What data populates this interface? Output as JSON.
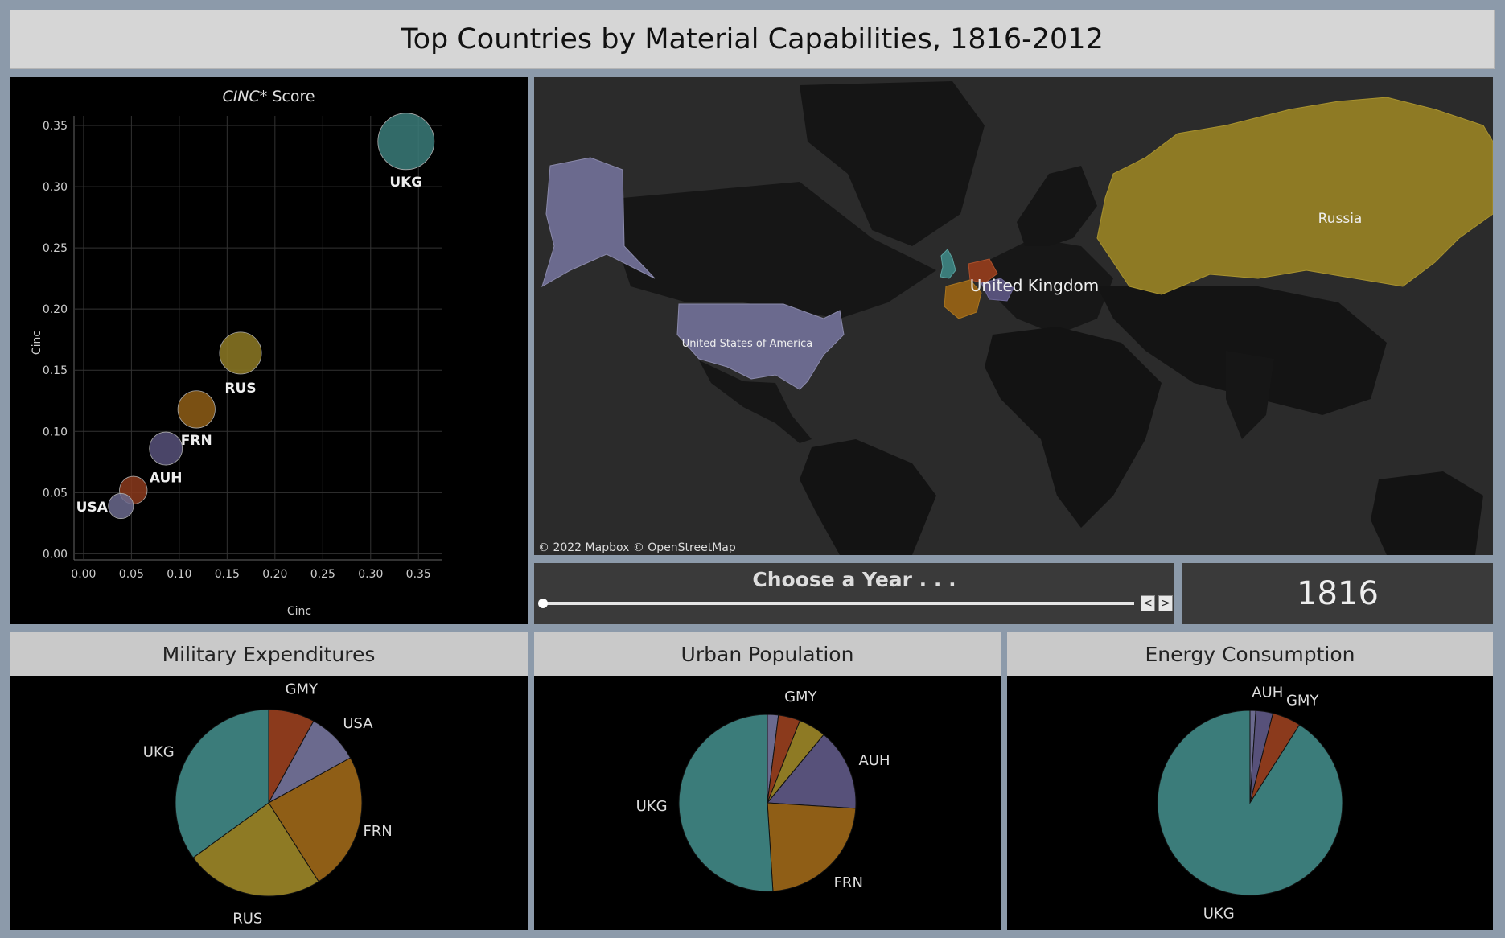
{
  "title": "Top Countries by Material Capabilities, 1816-2012",
  "scatter": {
    "title_italic": "CINC*",
    "title_rest": " Score",
    "xlabel": "Cinc",
    "ylabel": "Cinc",
    "xticks": [
      "0.00",
      "0.05",
      "0.10",
      "0.15",
      "0.20",
      "0.25",
      "0.30",
      "0.35"
    ],
    "yticks": [
      "0.00",
      "0.05",
      "0.10",
      "0.15",
      "0.20",
      "0.25",
      "0.30",
      "0.35"
    ]
  },
  "map": {
    "labels": {
      "russia": "Russia",
      "uk": "United Kingdom",
      "usa": "United States of America"
    },
    "attribution": "© 2022 Mapbox  © OpenStreetMap"
  },
  "year_selector": {
    "label": "Choose a Year . . .",
    "value": 0,
    "prev": "<",
    "next": ">"
  },
  "year_display": "1816",
  "headers": {
    "military": "Military Expenditures",
    "urban": "Urban Population",
    "energy": "Energy Consumption"
  },
  "colors": {
    "UKG": "#3b7c7a",
    "RUS": "#8e7a24",
    "FRN": "#8f5e16",
    "AUH": "#57517a",
    "USA": "#6b6a8e",
    "GMY": "#8b3a1c"
  },
  "chart_data": [
    {
      "type": "scatter",
      "title": "CINC* Score",
      "xlabel": "Cinc",
      "ylabel": "Cinc",
      "xlim": [
        -0.01,
        0.375
      ],
      "ylim": [
        -0.005,
        0.375
      ],
      "points": [
        {
          "label": "UKG",
          "x": 0.337,
          "y": 0.337,
          "size": 1.0
        },
        {
          "label": "RUS",
          "x": 0.164,
          "y": 0.164,
          "size": 0.48
        },
        {
          "label": "FRN",
          "x": 0.118,
          "y": 0.118,
          "size": 0.35
        },
        {
          "label": "AUH",
          "x": 0.086,
          "y": 0.086,
          "size": 0.25
        },
        {
          "label": "GMY",
          "x": 0.052,
          "y": 0.052,
          "size": 0.15
        },
        {
          "label": "USA",
          "x": 0.039,
          "y": 0.039,
          "size": 0.11
        }
      ],
      "visible_point_labels": [
        "UKG",
        "RUS",
        "FRN",
        "AUH",
        "USA"
      ]
    },
    {
      "type": "pie",
      "title": "Military Expenditures",
      "slices": [
        {
          "label": "GMY",
          "value": 8
        },
        {
          "label": "USA",
          "value": 9
        },
        {
          "label": "FRN",
          "value": 24
        },
        {
          "label": "RUS",
          "value": 24
        },
        {
          "label": "UKG",
          "value": 35
        }
      ]
    },
    {
      "type": "pie",
      "title": "Urban Population",
      "slices": [
        {
          "label": "USA",
          "value": 2
        },
        {
          "label": "GMY",
          "value": 4
        },
        {
          "label": "RUS",
          "value": 5
        },
        {
          "label": "AUH",
          "value": 15
        },
        {
          "label": "FRN",
          "value": 23
        },
        {
          "label": "UKG",
          "value": 51
        }
      ],
      "visible_labels": [
        "GMY",
        "AUH",
        "FRN",
        "UKG"
      ]
    },
    {
      "type": "pie",
      "title": "Energy Consumption",
      "slices": [
        {
          "label": "USA",
          "value": 1
        },
        {
          "label": "AUH",
          "value": 3
        },
        {
          "label": "GMY",
          "value": 5
        },
        {
          "label": "UKG",
          "value": 91
        }
      ],
      "visible_labels": [
        "AUH",
        "GMY",
        "UKG"
      ]
    }
  ]
}
